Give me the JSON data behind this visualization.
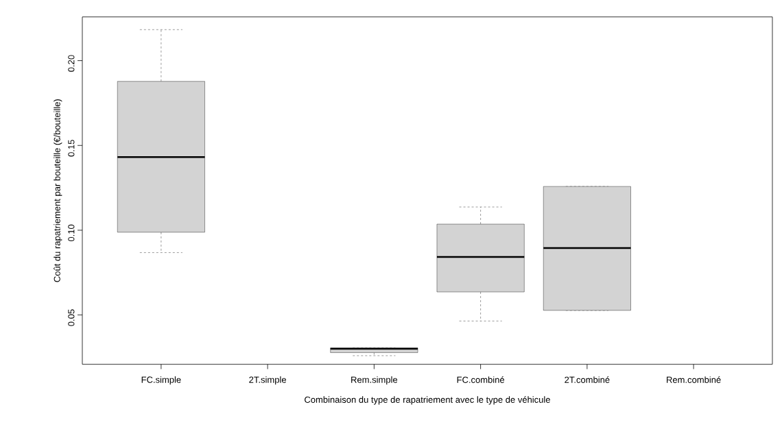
{
  "chart_data": {
    "type": "box",
    "xlabel": "Combinaison du type de rapatriement avec le type de véhicule",
    "ylabel": "Coût du rapatriement par bouteille (€/bouteille)",
    "categories": [
      "FC.simple",
      "2T.simple",
      "Rem.simple",
      "FC.combiné",
      "2T.combiné",
      "Rem.combiné"
    ],
    "boxes": [
      {
        "low": 0.0868,
        "q1": 0.0988,
        "median": 0.1431,
        "q3": 0.1878,
        "high": 0.2183
      },
      null,
      {
        "low": 0.026,
        "q1": 0.0278,
        "median": 0.0301,
        "q3": 0.0306,
        "high": 0.0306
      },
      {
        "low": 0.0464,
        "q1": 0.0636,
        "median": 0.0842,
        "q3": 0.1036,
        "high": 0.1137
      },
      {
        "low": 0.0527,
        "q1": 0.0527,
        "median": 0.0895,
        "q3": 0.1258,
        "high": 0.1258
      },
      null
    ],
    "color": "#d3d3d3",
    "ylim": [
      0.0209,
      0.2258
    ],
    "yticks": [
      {
        "value": 0.05,
        "label": "0.05"
      },
      {
        "value": 0.1,
        "label": "0.10"
      },
      {
        "value": 0.15,
        "label": "0.15"
      },
      {
        "value": 0.2,
        "label": "0.20"
      }
    ]
  }
}
